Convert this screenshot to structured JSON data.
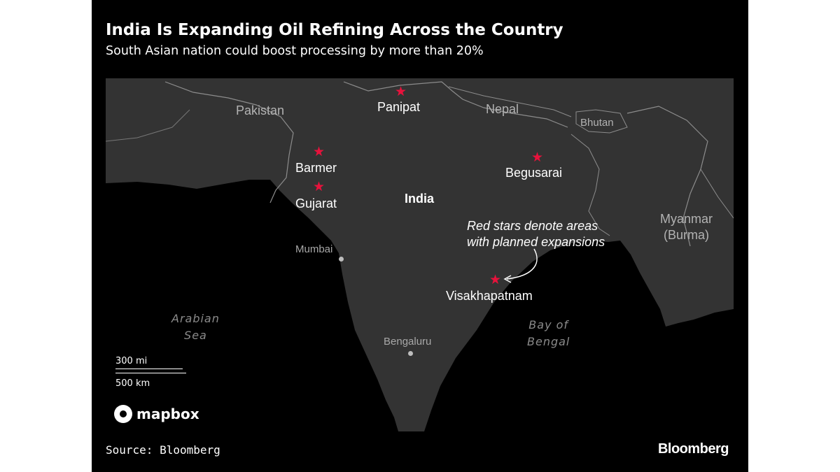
{
  "header": {
    "title": "India Is Expanding Oil Refining Across the Country",
    "subtitle": "South Asian nation could boost processing by more than 20%"
  },
  "map": {
    "countries": {
      "pakistan": "Pakistan",
      "nepal": "Nepal",
      "bhutan": "Bhutan",
      "india": "India",
      "myanmar_line1": "Myanmar",
      "myanmar_line2": "(Burma)"
    },
    "water_bodies": {
      "arabian_line1": "Arabian",
      "arabian_line2": "Sea",
      "bengal_line1": "Bay of",
      "bengal_line2": "Bengal"
    },
    "refinery_sites": [
      {
        "name": "Panipat"
      },
      {
        "name": "Barmer"
      },
      {
        "name": "Gujarat"
      },
      {
        "name": "Begusarai"
      },
      {
        "name": "Visakhapatnam"
      }
    ],
    "reference_cities": [
      {
        "name": "Mumbai"
      },
      {
        "name": "Bengaluru"
      }
    ],
    "annotation_line1": "Red stars denote areas",
    "annotation_line2": "with planned expansions",
    "marker_glyph": "★",
    "colors": {
      "land": "#333333",
      "sea": "#000000",
      "marker": "#e8123c",
      "border": "#8c8c8c"
    }
  },
  "scale_bar": {
    "miles": "300 mi",
    "km": "500 km"
  },
  "attribution": {
    "mapbox": "mapbox"
  },
  "footer": {
    "source": "Source: Bloomberg",
    "brand": "Bloomberg"
  }
}
